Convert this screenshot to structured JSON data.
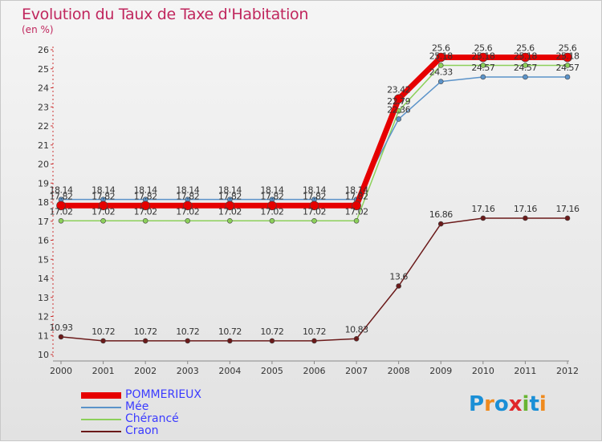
{
  "header": {
    "title": "Evolution du Taux de Taxe d'Habitation",
    "subtitle": "(en %)"
  },
  "brand": {
    "letters": [
      "P",
      "r",
      "o",
      "x",
      "i",
      "t",
      "i"
    ],
    "colors": [
      "#1a8fd6",
      "#ef8a1e",
      "#1a8fd6",
      "#e0262a",
      "#68b532",
      "#1a8fd6",
      "#ef8a1e"
    ]
  },
  "chart_data": {
    "type": "line",
    "title": "Evolution du Taux de Taxe d'Habitation",
    "ylabel": "(en %)",
    "xlabel": "",
    "ylim": [
      10,
      26
    ],
    "yticks": [
      10,
      11,
      12,
      13,
      14,
      15,
      16,
      17,
      18,
      19,
      20,
      21,
      22,
      23,
      24,
      25,
      26
    ],
    "categories": [
      "2000",
      "2001",
      "2002",
      "2003",
      "2004",
      "2005",
      "2006",
      "2007",
      "2008",
      "2009",
      "2010",
      "2011",
      "2012"
    ],
    "grid": false,
    "legend_position": "bottom-left",
    "series": [
      {
        "name": "Craon",
        "color": "#6b1a1a",
        "values": [
          10.93,
          10.72,
          10.72,
          10.72,
          10.72,
          10.72,
          10.72,
          10.83,
          13.6,
          16.86,
          17.16,
          17.16,
          17.16
        ],
        "labels": [
          "10.93",
          "10.72",
          "10.72",
          "10.72",
          "10.72",
          "10.72",
          "10.72",
          "10.83",
          "13.6",
          "16.86",
          "17.16",
          "17.16",
          "17.16"
        ]
      },
      {
        "name": "Chérancé",
        "color": "#8cd05a",
        "values": [
          17.02,
          17.02,
          17.02,
          17.02,
          17.02,
          17.02,
          17.02,
          17.02,
          22.79,
          25.18,
          25.18,
          25.18,
          25.18
        ],
        "labels": [
          "17.02",
          "17.02",
          "17.02",
          "17.02",
          "17.02",
          "17.02",
          "17.02",
          "17.02",
          "22.79",
          "25.18",
          "25.18",
          "25.18",
          "25.18"
        ]
      },
      {
        "name": "Mée",
        "color": "#5b93c9",
        "values": [
          18.14,
          18.14,
          18.14,
          18.14,
          18.14,
          18.14,
          18.14,
          18.14,
          22.36,
          24.33,
          24.57,
          24.57,
          24.57
        ],
        "labels": [
          "18.14",
          "18.14",
          "18.14",
          "18.14",
          "18.14",
          "18.14",
          "18.14",
          "18.14",
          "22.36",
          "24.33",
          "24.57",
          "24.57",
          "24.57"
        ]
      },
      {
        "name": "POMMERIEUX",
        "color": "#e60000",
        "values": [
          17.82,
          17.82,
          17.82,
          17.82,
          17.82,
          17.82,
          17.82,
          17.82,
          23.42,
          25.6,
          25.6,
          25.6,
          25.6
        ],
        "labels": [
          "17.82",
          "17.82",
          "17.82",
          "17.82",
          "17.82",
          "17.82",
          "17.82",
          "17.82",
          "23.42",
          "25.6",
          "25.6",
          "25.6",
          "25.6"
        ]
      }
    ],
    "legend": [
      {
        "name": "POMMERIEUX",
        "color": "#e60000",
        "text_color": "#3b3bff"
      },
      {
        "name": "Mée",
        "color": "#5b93c9",
        "text_color": "#3b3bff"
      },
      {
        "name": "Chérancé",
        "color": "#8cd05a",
        "text_color": "#3b3bff"
      },
      {
        "name": "Craon",
        "color": "#6b1a1a",
        "text_color": "#3b3bff"
      }
    ]
  }
}
